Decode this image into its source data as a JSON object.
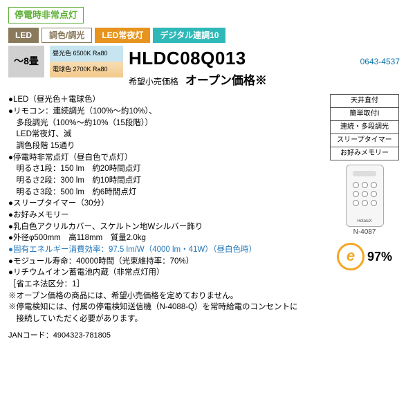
{
  "emergency_badge": "停電時非常点灯",
  "tags": {
    "led": "LED",
    "dimming": "調色/調光",
    "night": "LED常夜灯",
    "digital": "デジタル連調10"
  },
  "jou": "～8畳",
  "color_box": {
    "top": "昼光色 6500K Ra80",
    "bot": "電球色 2700K Ra80"
  },
  "model": "HLDC08Q013",
  "part_number": "0643-4537",
  "price_label": "希望小売価格",
  "price_value": "オープン価格※",
  "side_features": [
    "天井直付",
    "簡単取付Ⅰ",
    "連続・多段調光",
    "スリープタイマー",
    "お好みメモリー"
  ],
  "remote_code": "N-4087",
  "efficiency": "97%",
  "specs": [
    {
      "t": "bullet",
      "v": "●LED（昼光色＋電球色）"
    },
    {
      "t": "bullet",
      "v": "●リモコン：連続調光（100%～約10%）、"
    },
    {
      "t": "indent1",
      "v": "多段調光（100%～約10%（15段階））"
    },
    {
      "t": "indent1",
      "v": "LED常夜灯、滅"
    },
    {
      "t": "indent1",
      "v": "調色段階 15通り"
    },
    {
      "t": "bullet",
      "v": "●停電時非常点灯（昼白色で点灯）"
    },
    {
      "t": "indent1",
      "v": "明るさ1段：150 lm　約20時間点灯"
    },
    {
      "t": "indent1",
      "v": "明るさ2段：300 lm　約10時間点灯"
    },
    {
      "t": "indent1",
      "v": "明るさ3段：500 lm　約6時間点灯"
    },
    {
      "t": "bullet",
      "v": "●スリープタイマー（30分）"
    },
    {
      "t": "bullet",
      "v": "●お好みメモリー"
    },
    {
      "t": "bullet",
      "v": "●乳白色アクリルカバー、スケルトン地Wシルバー飾り"
    },
    {
      "t": "bullet",
      "v": "●外径φ500mm　高118mm　質量2.0kg"
    },
    {
      "t": "bullet blue",
      "v": "●固有エネルギー消費効率：97.5 lm/W（4000 lm・41W）（昼白色時）"
    },
    {
      "t": "bullet",
      "v": "●モジュール寿命：40000時間（光束維持率：70%）"
    },
    {
      "t": "bullet",
      "v": "●リチウムイオン蓄電池内蔵（非常点灯用）"
    },
    {
      "t": "plain",
      "v": "［省エネ法区分：1］"
    },
    {
      "t": "plain",
      "v": "※オープン価格の商品には、希望小売価格を定めておりません。"
    },
    {
      "t": "plain",
      "v": "※停電検知には、付属の停電検知送信機（N-4088-Q）を常時給電のコンセントに"
    },
    {
      "t": "indent-note",
      "v": "接続していただく必要があります。"
    }
  ],
  "jan_label": "JANコード：",
  "jan": "4904323-781805"
}
